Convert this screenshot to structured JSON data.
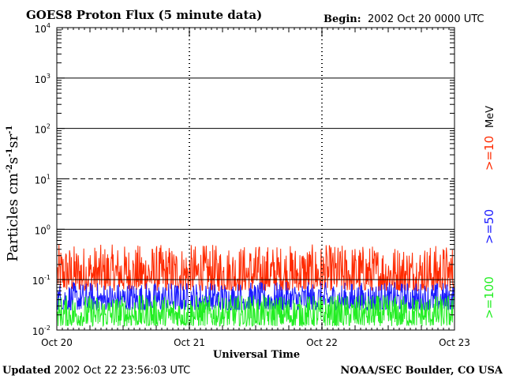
{
  "title": "GOES8 Proton Flux (5 minute data)",
  "begin_label": "Begin:",
  "begin_value": "2002 Oct 20 0000 UTC",
  "updated_label": "Updated",
  "updated_value": "2002 Oct 22 23:56:03 UTC",
  "source": "NOAA/SEC Boulder, CO USA",
  "colors": {
    "red": "#ff2a00",
    "blue": "#1a1aff",
    "green": "#22ee22",
    "axis": "#000000"
  },
  "chart_data": {
    "type": "line",
    "title": "GOES8 Proton Flux (5 minute data)",
    "xlabel": "Universal Time",
    "ylabel": "Particles cm-2s-1sr-1",
    "yscale": "log",
    "ylim": [
      0.01,
      10000
    ],
    "xlim": [
      "Oct 20",
      "Oct 23"
    ],
    "x_ticks": [
      "Oct 20",
      "Oct 21",
      "Oct 22",
      "Oct 23"
    ],
    "y_ticks": [
      {
        "base": "10",
        "exp": "-2"
      },
      {
        "base": "10",
        "exp": "-1"
      },
      {
        "base": "10",
        "exp": "0"
      },
      {
        "base": "10",
        "exp": "1"
      },
      {
        "base": "10",
        "exp": "2"
      },
      {
        "base": "10",
        "exp": "3"
      },
      {
        "base": "10",
        "exp": "4"
      }
    ],
    "ylabel_parts": {
      "main": "Particles cm",
      "e1": "-2",
      "s": "s",
      "e2": "-1",
      "sr": "sr",
      "e3": "-1"
    },
    "energy_unit": "MeV",
    "series": [
      {
        "name": ">=10",
        "color": "#ff2a00",
        "typical_range": [
          0.06,
          0.5
        ]
      },
      {
        "name": ">=50",
        "color": "#1a1aff",
        "typical_range": [
          0.025,
          0.09
        ]
      },
      {
        "name": ">=100",
        "color": "#22ee22",
        "typical_range": [
          0.012,
          0.05
        ]
      }
    ],
    "grid": "horizontal at decades; 10^1 dashed"
  }
}
